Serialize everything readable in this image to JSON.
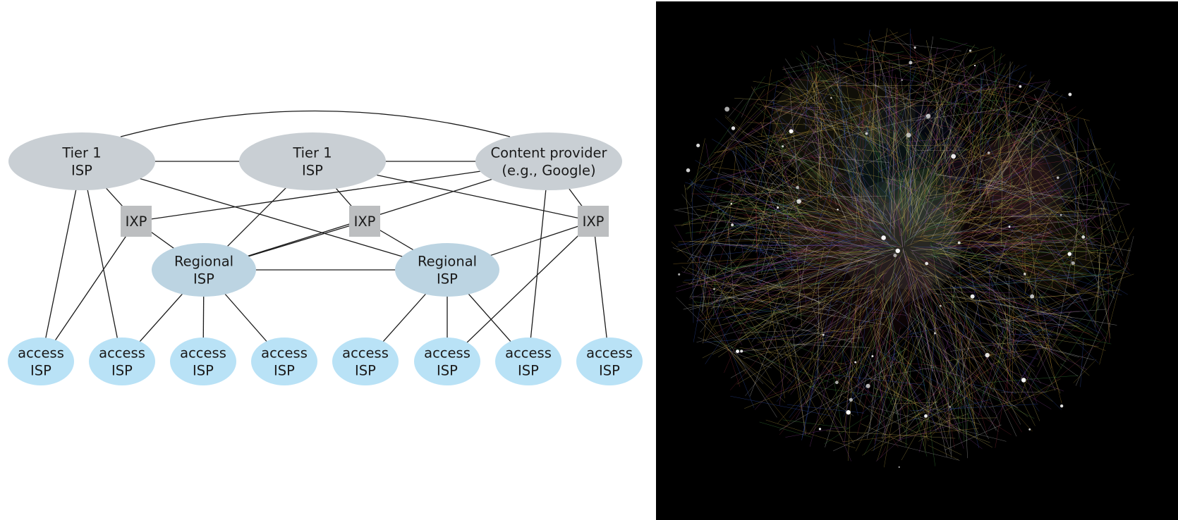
{
  "nodes": [
    {
      "id": "t1a",
      "kind": "tier1",
      "lines": [
        "Tier 1",
        "ISP"
      ]
    },
    {
      "id": "t1b",
      "kind": "tier1",
      "lines": [
        "Tier 1",
        "ISP"
      ]
    },
    {
      "id": "cp",
      "kind": "tier1",
      "lines": [
        "Content provider",
        "(e.g., Google)"
      ]
    },
    {
      "id": "ixp1",
      "kind": "ixp",
      "lines": [
        "IXP"
      ]
    },
    {
      "id": "ixp2",
      "kind": "ixp",
      "lines": [
        "IXP"
      ]
    },
    {
      "id": "ixp3",
      "kind": "ixp",
      "lines": [
        "IXP"
      ]
    },
    {
      "id": "r1",
      "kind": "regional",
      "lines": [
        "Regional",
        "ISP"
      ]
    },
    {
      "id": "r2",
      "kind": "regional",
      "lines": [
        "Regional",
        "ISP"
      ]
    },
    {
      "id": "a1",
      "kind": "access",
      "lines": [
        "access",
        "ISP"
      ]
    },
    {
      "id": "a2",
      "kind": "access",
      "lines": [
        "access",
        "ISP"
      ]
    },
    {
      "id": "a3",
      "kind": "access",
      "lines": [
        "access",
        "ISP"
      ]
    },
    {
      "id": "a4",
      "kind": "access",
      "lines": [
        "access",
        "ISP"
      ]
    },
    {
      "id": "a5",
      "kind": "access",
      "lines": [
        "access",
        "ISP"
      ]
    },
    {
      "id": "a6",
      "kind": "access",
      "lines": [
        "access",
        "ISP"
      ]
    },
    {
      "id": "a7",
      "kind": "access",
      "lines": [
        "access",
        "ISP"
      ]
    },
    {
      "id": "a8",
      "kind": "access",
      "lines": [
        "access",
        "ISP"
      ]
    }
  ],
  "links": [
    [
      "t1a",
      "t1b"
    ],
    [
      "t1b",
      "cp"
    ],
    [
      "t1a",
      "cp"
    ],
    [
      "t1a",
      "ixp1"
    ],
    [
      "t1a",
      "r2"
    ],
    [
      "t1a",
      "a1"
    ],
    [
      "t1a",
      "a2"
    ],
    [
      "t1b",
      "r1"
    ],
    [
      "t1b",
      "ixp2"
    ],
    [
      "t1b",
      "ixp3"
    ],
    [
      "cp",
      "ixp1"
    ],
    [
      "cp",
      "r1"
    ],
    [
      "cp",
      "ixp3"
    ],
    [
      "cp",
      "a7"
    ],
    [
      "ixp1",
      "r1"
    ],
    [
      "ixp1",
      "a1"
    ],
    [
      "ixp2",
      "r1"
    ],
    [
      "ixp2",
      "r2"
    ],
    [
      "ixp3",
      "r2"
    ],
    [
      "ixp3",
      "a6"
    ],
    [
      "ixp3",
      "a8"
    ],
    [
      "r1",
      "r2"
    ],
    [
      "r1",
      "a2"
    ],
    [
      "r1",
      "a3"
    ],
    [
      "r1",
      "a4"
    ],
    [
      "r2",
      "a5"
    ],
    [
      "r2",
      "a6"
    ],
    [
      "r2",
      "a7"
    ]
  ],
  "colors": {
    "tier1": "#c9cfd4",
    "regional": "#bcd4e2",
    "access": "#b9e2f6",
    "ixp": "#bcbec0",
    "edge": "#1a1a1a",
    "photo_background": "#000000"
  }
}
